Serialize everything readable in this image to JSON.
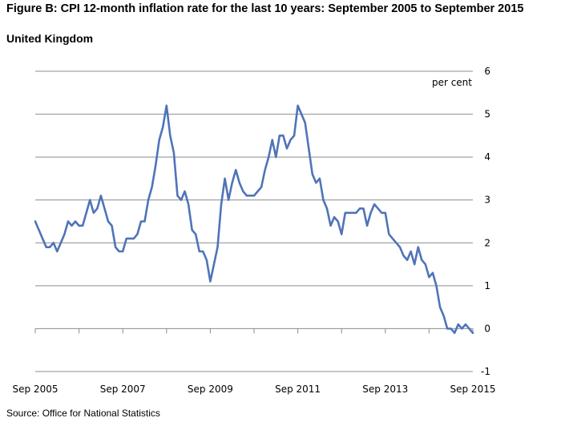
{
  "chart_data": {
    "type": "line",
    "title": "Figure B: CPI 12-month inflation rate for the last 10 years: September 2005 to September 2015",
    "subtitle": "United Kingdom",
    "ylabel": "per cent",
    "xlabel": "",
    "source": "Source: Office for National Statistics",
    "ylim": [
      -1,
      6
    ],
    "yticks": [
      "6",
      "5",
      "4",
      "3",
      "2",
      "1",
      "0",
      "-1"
    ],
    "ytick_values": [
      6,
      5,
      4,
      3,
      2,
      1,
      0,
      -1
    ],
    "xtick_labels": [
      "Sep 2005",
      "Sep 2007",
      "Sep 2009",
      "Sep 2011",
      "Sep 2013",
      "Sep 2015"
    ],
    "xtick_indices": [
      0,
      24,
      48,
      72,
      96,
      120
    ],
    "grid": true,
    "series": [
      {
        "name": "CPI 12-month inflation rate",
        "color": "#4F74B8",
        "start": "Sep 2005",
        "values": [
          2.5,
          2.3,
          2.1,
          1.9,
          1.9,
          2.0,
          1.8,
          2.0,
          2.2,
          2.5,
          2.4,
          2.5,
          2.4,
          2.4,
          2.7,
          3.0,
          2.7,
          2.8,
          3.1,
          2.8,
          2.5,
          2.4,
          1.9,
          1.8,
          1.8,
          2.1,
          2.1,
          2.1,
          2.2,
          2.5,
          2.5,
          3.0,
          3.3,
          3.8,
          4.4,
          4.7,
          5.2,
          4.5,
          4.1,
          3.1,
          3.0,
          3.2,
          2.9,
          2.3,
          2.2,
          1.8,
          1.8,
          1.6,
          1.1,
          1.5,
          1.9,
          2.9,
          3.5,
          3.0,
          3.4,
          3.7,
          3.4,
          3.2,
          3.1,
          3.1,
          3.1,
          3.2,
          3.3,
          3.7,
          4.0,
          4.4,
          4.0,
          4.5,
          4.5,
          4.2,
          4.4,
          4.5,
          5.2,
          5.0,
          4.8,
          4.2,
          3.6,
          3.4,
          3.5,
          3.0,
          2.8,
          2.4,
          2.6,
          2.5,
          2.2,
          2.7,
          2.7,
          2.7,
          2.7,
          2.8,
          2.8,
          2.4,
          2.7,
          2.9,
          2.8,
          2.7,
          2.7,
          2.2,
          2.1,
          2.0,
          1.9,
          1.7,
          1.6,
          1.8,
          1.5,
          1.9,
          1.6,
          1.5,
          1.2,
          1.3,
          1.0,
          0.5,
          0.3,
          0.0,
          0.0,
          -0.1,
          0.1,
          0.0,
          0.1,
          0.0,
          -0.1
        ]
      }
    ]
  }
}
